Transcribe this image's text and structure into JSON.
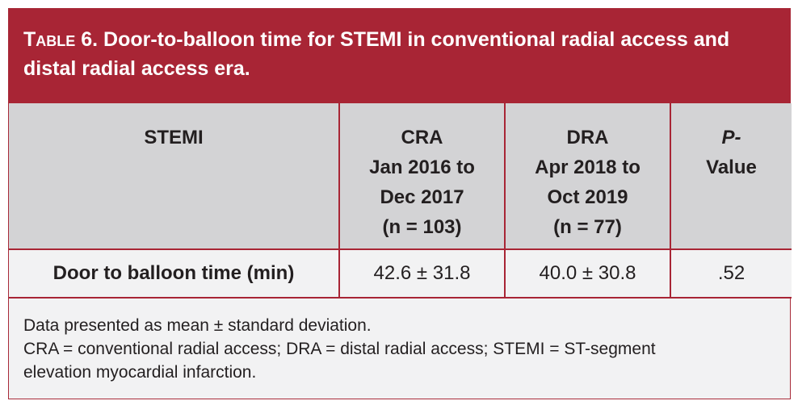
{
  "title": {
    "label": "Table 6.",
    "text": "Door-to-balloon time for STEMI in conventional radial access and distal radial access era."
  },
  "table": {
    "headers": [
      {
        "lines": [
          "STEMI"
        ]
      },
      {
        "lines": [
          "CRA",
          "Jan 2016 to",
          "Dec 2017",
          "(n = 103)"
        ]
      },
      {
        "lines": [
          "DRA",
          "Apr 2018 to",
          "Oct 2019",
          "(n = 77)"
        ]
      },
      {
        "lines": [
          "P-",
          "Value"
        ]
      }
    ],
    "rows": [
      {
        "label": "Door to balloon time (min)",
        "cra": "42.6 ± 31.8",
        "dra": "40.0 ± 30.8",
        "p": ".52"
      }
    ]
  },
  "footnotes": {
    "line1": "Data presented as mean ± standard deviation.",
    "line2": "CRA = conventional radial access; DRA = distal radial access; STEMI = ST-segment",
    "line3": "elevation myocardial infarction."
  },
  "colors": {
    "accent": "#a82535",
    "header_bg": "#d3d3d5",
    "body_bg": "#f2f2f3"
  }
}
